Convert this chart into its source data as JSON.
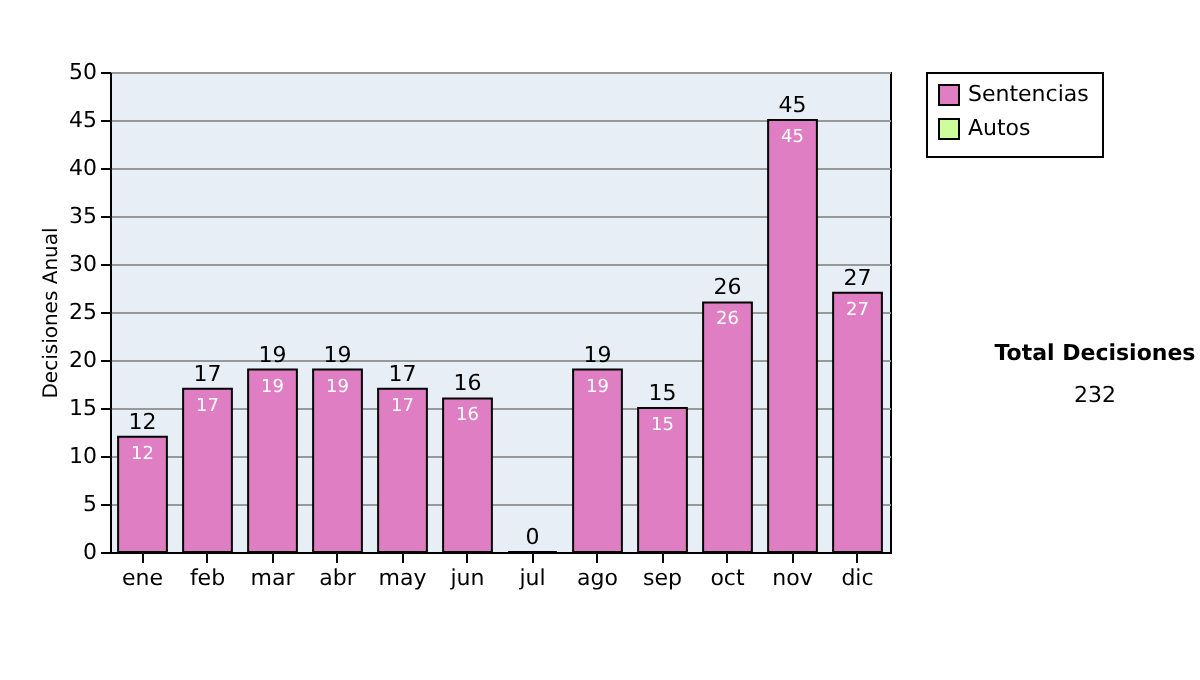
{
  "chart_data": {
    "type": "bar",
    "ylabel": "Decisiones Anual",
    "categories": [
      "ene",
      "feb",
      "mar",
      "abr",
      "may",
      "jun",
      "jul",
      "ago",
      "sep",
      "oct",
      "nov",
      "dic"
    ],
    "series": [
      {
        "name": "Sentencias",
        "color": "#e07ec4",
        "values": [
          12,
          17,
          19,
          19,
          17,
          16,
          0,
          19,
          15,
          26,
          45,
          27
        ],
        "value_labels": [
          "12",
          "17",
          "19",
          "19",
          "17",
          "16",
          null,
          "19",
          "15",
          "26",
          "45",
          "27"
        ]
      },
      {
        "name": "Autos",
        "color": "#ccff99",
        "values": [
          null,
          null,
          null,
          null,
          null,
          null,
          null,
          null,
          null,
          null,
          null,
          null
        ]
      }
    ],
    "totals": [
      "12",
      "17",
      "19",
      "19",
      "17",
      "16",
      "0",
      "19",
      "15",
      "26",
      "45",
      "27"
    ],
    "ylim": [
      0,
      50
    ],
    "yticks": [
      0,
      5,
      10,
      15,
      20,
      25,
      30,
      35,
      40,
      45,
      50
    ],
    "grid": "y",
    "legend": "right",
    "annotations": [
      "Total Decisiones",
      "232"
    ]
  }
}
